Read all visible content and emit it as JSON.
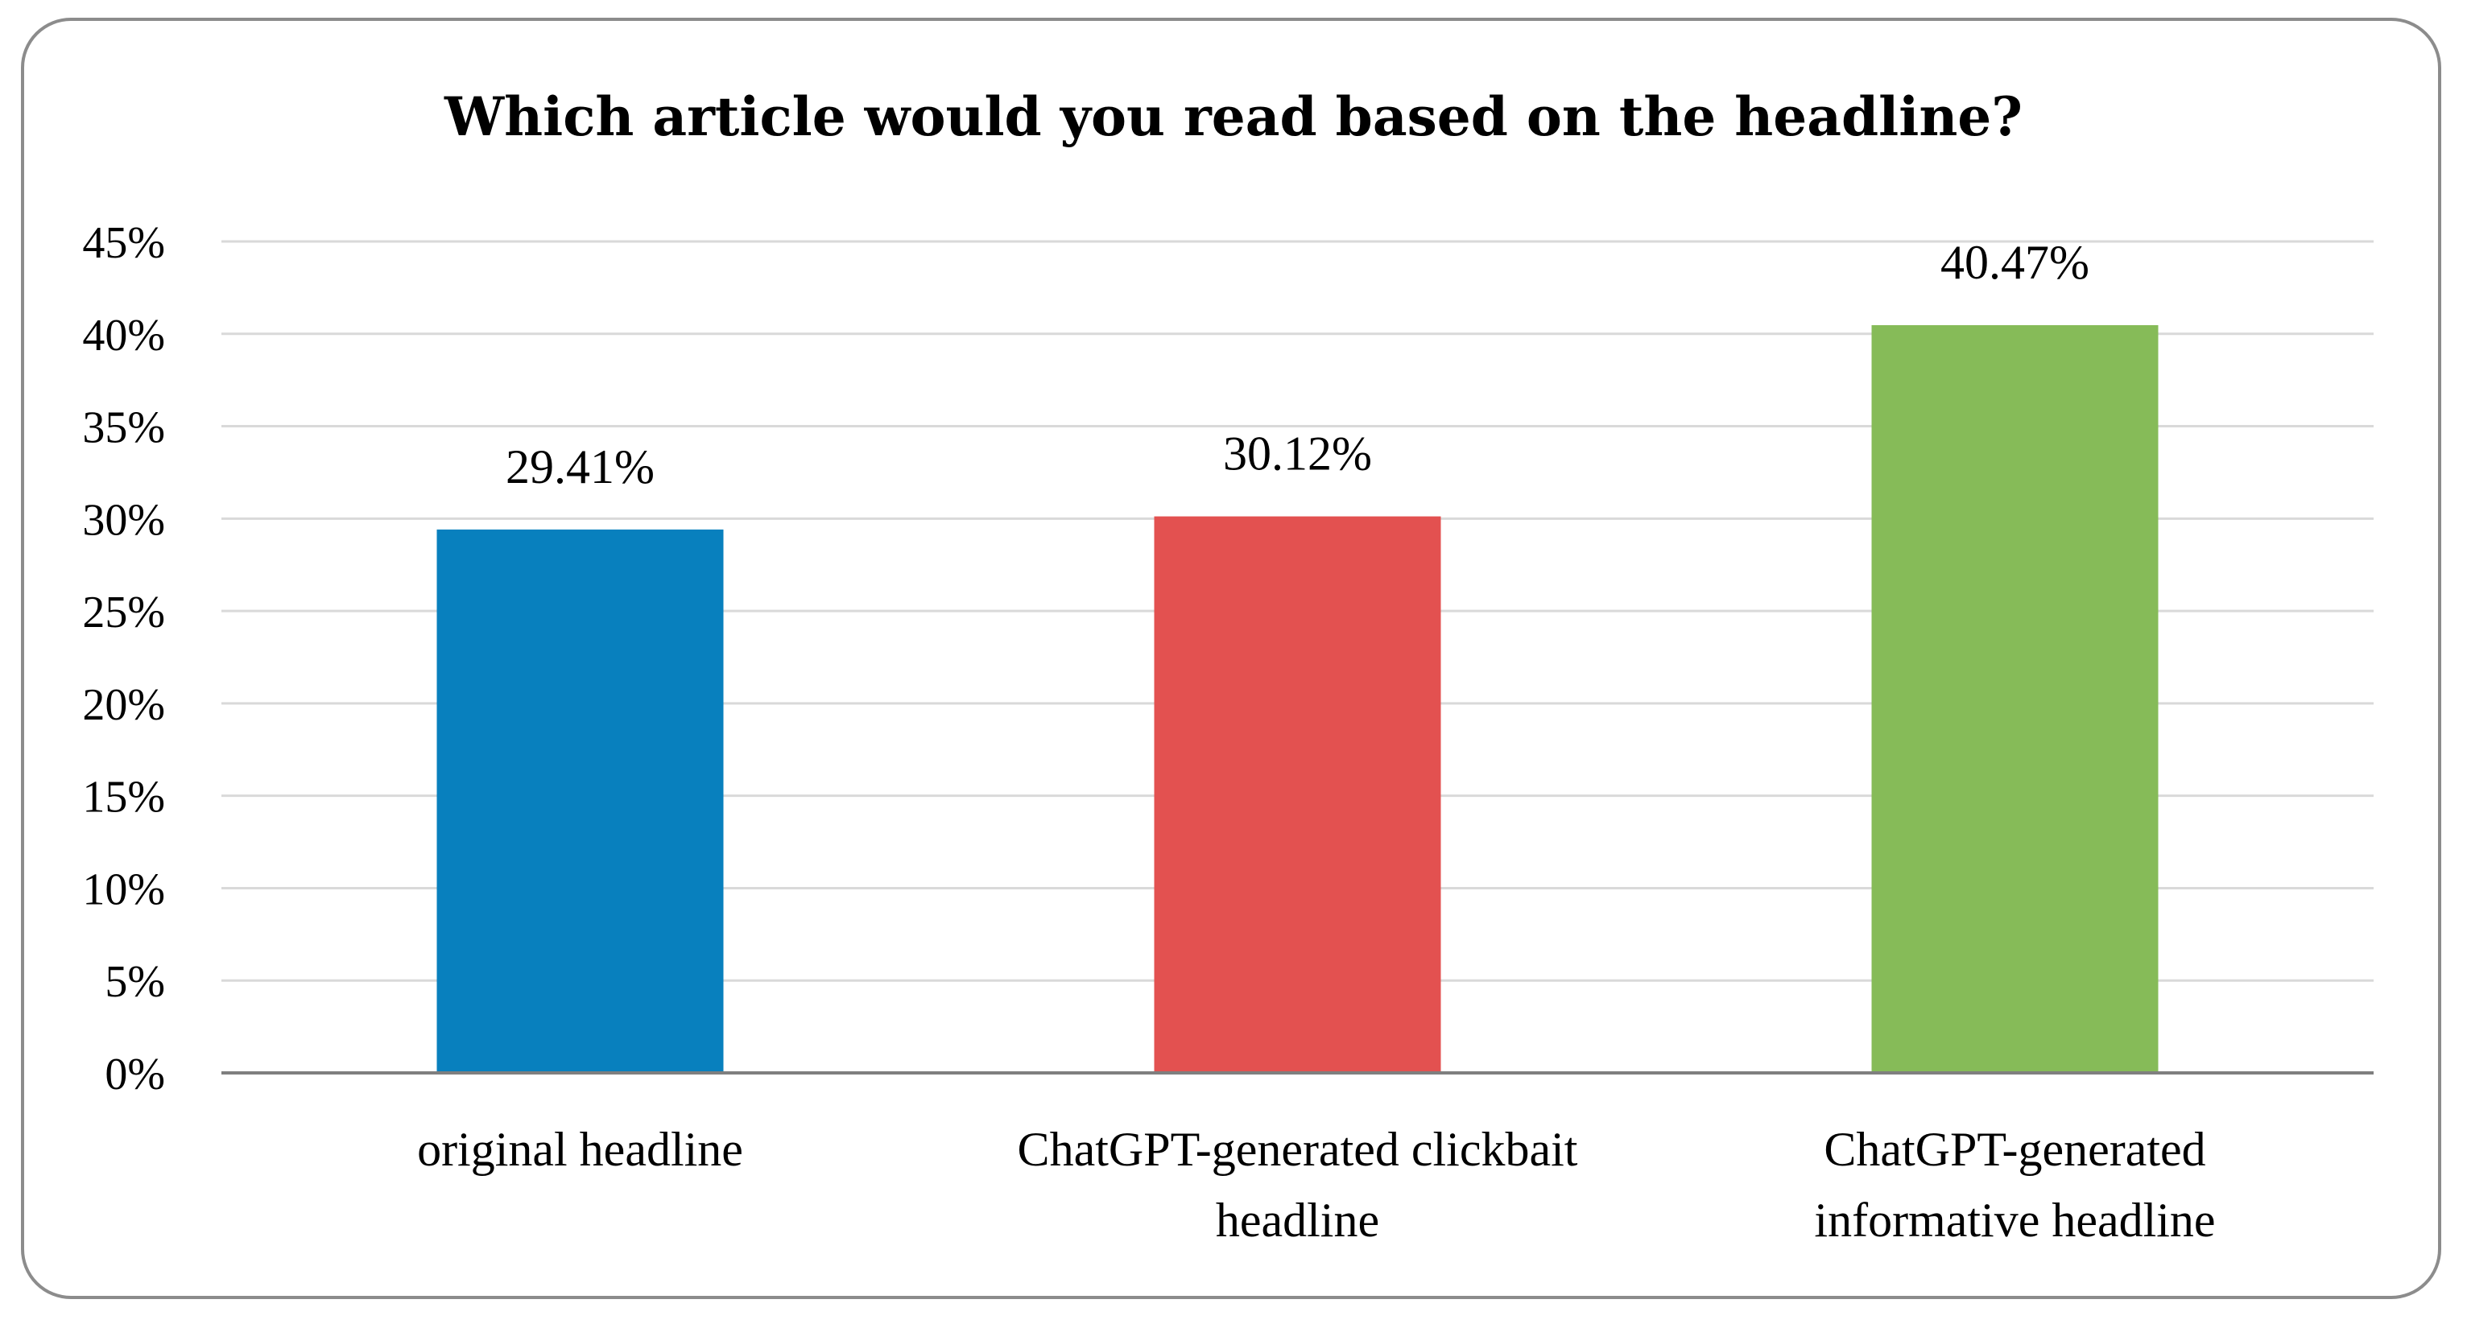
{
  "chart_data": {
    "type": "bar",
    "title": "Which article would you read based on the headline?",
    "categories": [
      [
        "original headline"
      ],
      [
        "ChatGPT-generated clickbait",
        "headline"
      ],
      [
        "ChatGPT-generated",
        "informative headline"
      ]
    ],
    "values": [
      29.41,
      30.12,
      40.47
    ],
    "data_labels": [
      "29.41%",
      "30.12%",
      "40.47%"
    ],
    "colors": [
      "#0880be",
      "#e35150",
      "#86bb58"
    ],
    "ylim": [
      0,
      45
    ],
    "y_ticks": [
      "0%",
      "5%",
      "10%",
      "15%",
      "20%",
      "25%",
      "30%",
      "35%",
      "40%",
      "45%"
    ],
    "y_tick_values": [
      0,
      5,
      10,
      15,
      20,
      25,
      30,
      35,
      40,
      45
    ],
    "xlabel": "",
    "ylabel": "",
    "grid": true,
    "legend": "none"
  }
}
